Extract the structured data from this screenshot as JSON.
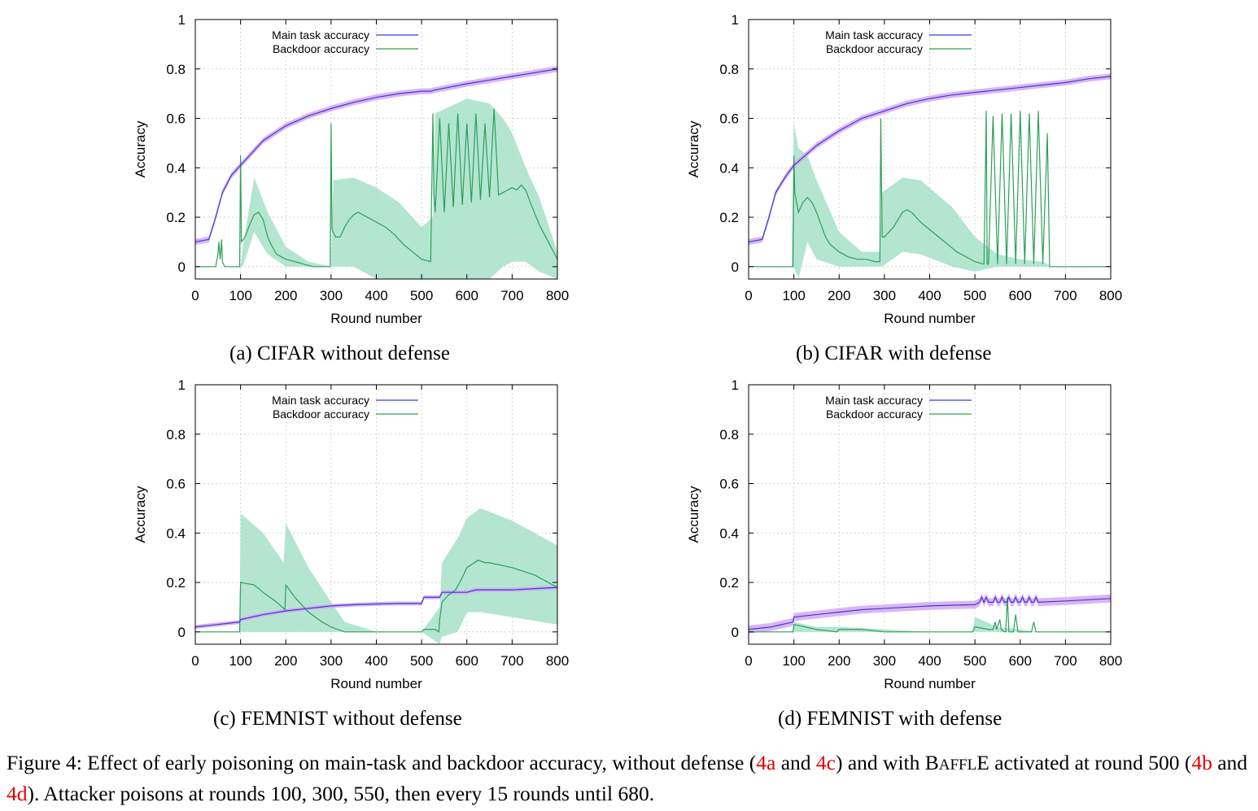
{
  "colors": {
    "main": "#3a3adb",
    "main_band": "#d6a8ee",
    "backdoor": "#2ca05a",
    "backdoor_band": "#a6e0c9",
    "grid": "#c8c8c8",
    "ref": "#e00000"
  },
  "legend": {
    "main": "Main task accuracy",
    "backdoor": "Backdoor accuracy"
  },
  "chart_data": [
    {
      "id": "a",
      "type": "line",
      "caption": "(a) CIFAR without defense",
      "xlabel": "Round number",
      "ylabel": "Accuracy",
      "xlim": [
        0,
        800
      ],
      "ylim": [
        -0.05,
        1
      ],
      "xticks": [
        "0",
        "100",
        "200",
        "300",
        "400",
        "500",
        "600",
        "700",
        "800"
      ],
      "yticks": [
        "0",
        "0.2",
        "0.4",
        "0.6",
        "0.8",
        "1"
      ],
      "grid": true,
      "legend_position": "top-left",
      "series": [
        {
          "name": "Main task accuracy",
          "band": 0.012,
          "x": [
            0,
            30,
            45,
            60,
            80,
            100,
            150,
            200,
            250,
            300,
            350,
            400,
            450,
            500,
            520,
            530,
            600,
            650,
            700,
            750,
            800
          ],
          "y": [
            0.1,
            0.11,
            0.2,
            0.3,
            0.37,
            0.41,
            0.51,
            0.57,
            0.61,
            0.64,
            0.665,
            0.685,
            0.7,
            0.71,
            0.71,
            0.715,
            0.74,
            0.755,
            0.77,
            0.785,
            0.8
          ]
        },
        {
          "name": "Backdoor accuracy",
          "x": [
            0,
            45,
            50,
            52,
            55,
            58,
            60,
            65,
            70,
            75,
            98,
            100,
            102,
            110,
            120,
            130,
            140,
            150,
            160,
            170,
            180,
            200,
            220,
            240,
            260,
            270,
            298,
            300,
            302,
            310,
            320,
            330,
            340,
            350,
            360,
            370,
            380,
            400,
            420,
            440,
            460,
            480,
            500,
            520,
            525,
            527,
            530,
            540,
            550,
            560,
            570,
            580,
            590,
            600,
            610,
            620,
            630,
            640,
            650,
            660,
            670,
            680,
            690,
            700,
            710,
            720,
            730,
            740,
            760,
            780,
            800
          ],
          "y": [
            0.0,
            0.0,
            0.05,
            0.1,
            0.03,
            0.11,
            0.02,
            0.0,
            0.0,
            0.0,
            0.0,
            0.45,
            0.1,
            0.12,
            0.17,
            0.21,
            0.22,
            0.19,
            0.12,
            0.08,
            0.05,
            0.03,
            0.02,
            0.01,
            0.0,
            0.0,
            0.0,
            0.58,
            0.15,
            0.12,
            0.12,
            0.16,
            0.19,
            0.21,
            0.22,
            0.21,
            0.2,
            0.18,
            0.16,
            0.13,
            0.09,
            0.06,
            0.03,
            0.02,
            0.62,
            0.3,
            0.22,
            0.6,
            0.22,
            0.58,
            0.24,
            0.62,
            0.25,
            0.58,
            0.26,
            0.62,
            0.27,
            0.58,
            0.28,
            0.64,
            0.29,
            0.3,
            0.31,
            0.32,
            0.31,
            0.33,
            0.31,
            0.26,
            0.17,
            0.1,
            0.03
          ],
          "band_x": [
            0,
            45,
            100,
            105,
            130,
            160,
            200,
            250,
            300,
            305,
            350,
            400,
            450,
            500,
            525,
            530,
            600,
            650,
            680,
            700,
            730,
            760,
            800
          ],
          "band_lo": [
            0.0,
            0.0,
            0.0,
            0.0,
            0.14,
            0.05,
            0.0,
            0.0,
            0.0,
            0.0,
            0.0,
            -0.05,
            -0.05,
            -0.05,
            -0.05,
            -0.05,
            -0.05,
            -0.05,
            0.0,
            0.02,
            0.02,
            -0.02,
            -0.05
          ],
          "band_hi": [
            0.0,
            0.0,
            0.0,
            0.08,
            0.36,
            0.22,
            0.08,
            0.02,
            0.0,
            0.35,
            0.36,
            0.32,
            0.26,
            0.16,
            0.2,
            0.62,
            0.68,
            0.66,
            0.6,
            0.54,
            0.4,
            0.28,
            0.06
          ]
        }
      ]
    },
    {
      "id": "b",
      "type": "line",
      "caption": "(b) CIFAR with defense",
      "xlabel": "Round number",
      "ylabel": "Accuracy",
      "xlim": [
        0,
        800
      ],
      "ylim": [
        -0.05,
        1
      ],
      "xticks": [
        "0",
        "100",
        "200",
        "300",
        "400",
        "500",
        "600",
        "700",
        "800"
      ],
      "yticks": [
        "0",
        "0.2",
        "0.4",
        "0.6",
        "0.8",
        "1"
      ],
      "grid": true,
      "legend_position": "top-left",
      "series": [
        {
          "name": "Main task accuracy",
          "band": 0.012,
          "x": [
            0,
            30,
            45,
            60,
            80,
            100,
            150,
            200,
            250,
            300,
            350,
            400,
            450,
            500,
            550,
            600,
            650,
            700,
            750,
            800
          ],
          "y": [
            0.1,
            0.11,
            0.2,
            0.3,
            0.36,
            0.41,
            0.49,
            0.55,
            0.6,
            0.63,
            0.66,
            0.68,
            0.695,
            0.705,
            0.715,
            0.725,
            0.735,
            0.745,
            0.76,
            0.77
          ]
        },
        {
          "name": "Backdoor accuracy",
          "x": [
            0,
            95,
            98,
            100,
            102,
            110,
            120,
            130,
            140,
            150,
            160,
            170,
            180,
            200,
            220,
            240,
            260,
            280,
            290,
            292,
            295,
            300,
            310,
            320,
            330,
            340,
            350,
            360,
            370,
            380,
            400,
            420,
            440,
            460,
            480,
            500,
            520,
            525,
            527,
            530,
            540,
            550,
            560,
            570,
            580,
            590,
            600,
            610,
            620,
            630,
            640,
            650,
            660,
            665,
            670,
            680,
            700,
            750,
            800
          ],
          "y": [
            0.0,
            0.0,
            0.0,
            0.45,
            0.3,
            0.22,
            0.26,
            0.28,
            0.26,
            0.22,
            0.17,
            0.12,
            0.09,
            0.06,
            0.04,
            0.03,
            0.03,
            0.02,
            0.02,
            0.6,
            0.12,
            0.12,
            0.14,
            0.16,
            0.19,
            0.22,
            0.23,
            0.22,
            0.2,
            0.18,
            0.15,
            0.12,
            0.09,
            0.06,
            0.04,
            0.02,
            0.01,
            0.63,
            0.01,
            0.01,
            0.61,
            0.01,
            0.62,
            0.01,
            0.62,
            0.01,
            0.63,
            0.01,
            0.62,
            0.01,
            0.63,
            0.01,
            0.54,
            0.0,
            0.0,
            0.0,
            0.0,
            0.0,
            0.0
          ],
          "band_x": [
            0,
            95,
            100,
            110,
            130,
            150,
            200,
            250,
            290,
            295,
            340,
            380,
            450,
            500,
            550,
            600,
            650,
            670,
            800
          ],
          "band_lo": [
            0.0,
            0.0,
            0.0,
            -0.05,
            0.1,
            0.03,
            0.0,
            0.0,
            0.0,
            0.0,
            0.06,
            0.05,
            0.0,
            -0.02,
            0.0,
            0.0,
            0.0,
            0.0,
            0.0
          ],
          "band_hi": [
            0.0,
            0.0,
            0.58,
            0.48,
            0.45,
            0.35,
            0.14,
            0.06,
            0.06,
            0.3,
            0.36,
            0.35,
            0.24,
            0.12,
            0.05,
            0.03,
            0.02,
            0.0,
            0.0
          ]
        }
      ]
    },
    {
      "id": "c",
      "type": "line",
      "caption": "(c) FEMNIST without defense",
      "xlabel": "Round number",
      "ylabel": "Accuracy",
      "xlim": [
        0,
        800
      ],
      "ylim": [
        -0.05,
        1
      ],
      "xticks": [
        "0",
        "100",
        "200",
        "300",
        "400",
        "500",
        "600",
        "700",
        "800"
      ],
      "yticks": [
        "0",
        "0.2",
        "0.4",
        "0.6",
        "0.8",
        "1"
      ],
      "grid": true,
      "legend_position": "top-left",
      "series": [
        {
          "name": "Main task accuracy",
          "band": 0.008,
          "x": [
            0,
            50,
            98,
            100,
            150,
            200,
            250,
            300,
            350,
            400,
            450,
            500,
            505,
            540,
            545,
            600,
            620,
            650,
            700,
            800
          ],
          "y": [
            0.02,
            0.03,
            0.04,
            0.05,
            0.07,
            0.085,
            0.095,
            0.105,
            0.11,
            0.113,
            0.115,
            0.115,
            0.14,
            0.14,
            0.16,
            0.16,
            0.17,
            0.17,
            0.17,
            0.18
          ]
        },
        {
          "name": "Backdoor accuracy",
          "x": [
            0,
            98,
            100,
            130,
            150,
            180,
            198,
            200,
            220,
            250,
            280,
            300,
            330,
            350,
            400,
            500,
            505,
            530,
            538,
            540,
            545,
            560,
            575,
            590,
            600,
            625,
            640,
            650,
            700,
            750,
            800
          ],
          "y": [
            0.0,
            0.0,
            0.2,
            0.19,
            0.16,
            0.12,
            0.09,
            0.19,
            0.14,
            0.08,
            0.04,
            0.02,
            0.0,
            0.0,
            0.0,
            0.0,
            0.01,
            0.01,
            0.0,
            0.05,
            0.12,
            0.15,
            0.17,
            0.22,
            0.26,
            0.29,
            0.28,
            0.28,
            0.26,
            0.23,
            0.18
          ],
          "band_x": [
            0,
            98,
            100,
            150,
            195,
            200,
            250,
            300,
            330,
            400,
            500,
            540,
            545,
            580,
            600,
            630,
            700,
            800
          ],
          "band_lo": [
            0.0,
            0.0,
            0.0,
            0.0,
            0.0,
            0.0,
            0.0,
            0.0,
            0.0,
            0.0,
            0.0,
            -0.05,
            -0.02,
            0.0,
            0.08,
            0.08,
            0.06,
            0.03
          ],
          "band_hi": [
            0.0,
            0.0,
            0.48,
            0.4,
            0.28,
            0.44,
            0.26,
            0.12,
            0.04,
            0.0,
            0.0,
            0.1,
            0.28,
            0.38,
            0.46,
            0.5,
            0.45,
            0.35
          ]
        }
      ]
    },
    {
      "id": "d",
      "type": "line",
      "caption": "(d) FEMNIST with defense",
      "xlabel": "Round number",
      "ylabel": "Accuracy",
      "xlim": [
        0,
        800
      ],
      "ylim": [
        -0.05,
        1
      ],
      "xticks": [
        "0",
        "100",
        "200",
        "300",
        "400",
        "500",
        "600",
        "700",
        "800"
      ],
      "yticks": [
        "0",
        "0.2",
        "0.4",
        "0.6",
        "0.8",
        "1"
      ],
      "grid": true,
      "legend_position": "top-left",
      "series": [
        {
          "name": "Main task accuracy",
          "band": 0.016,
          "x": [
            0,
            50,
            98,
            100,
            150,
            200,
            250,
            300,
            350,
            400,
            450,
            500,
            510,
            515,
            520,
            525,
            530,
            540,
            545,
            550,
            555,
            560,
            565,
            570,
            575,
            580,
            585,
            590,
            595,
            600,
            605,
            610,
            615,
            620,
            625,
            630,
            635,
            640,
            700,
            800
          ],
          "y": [
            0.01,
            0.02,
            0.04,
            0.06,
            0.07,
            0.08,
            0.09,
            0.095,
            0.1,
            0.105,
            0.108,
            0.11,
            0.12,
            0.14,
            0.12,
            0.14,
            0.12,
            0.12,
            0.14,
            0.12,
            0.12,
            0.14,
            0.12,
            0.12,
            0.14,
            0.12,
            0.12,
            0.14,
            0.12,
            0.12,
            0.14,
            0.12,
            0.12,
            0.14,
            0.12,
            0.12,
            0.14,
            0.12,
            0.125,
            0.135
          ]
        },
        {
          "name": "Backdoor accuracy",
          "x": [
            0,
            98,
            100,
            150,
            195,
            200,
            250,
            300,
            400,
            495,
            500,
            530,
            540,
            545,
            548,
            555,
            558,
            565,
            568,
            572,
            575,
            585,
            590,
            595,
            600,
            625,
            630,
            635,
            640,
            700,
            800
          ],
          "y": [
            0.0,
            0.0,
            0.03,
            0.01,
            0.0,
            0.01,
            0.01,
            0.0,
            0.0,
            0.0,
            0.02,
            0.01,
            0.01,
            0.04,
            0.01,
            0.05,
            0.01,
            0.0,
            0.0,
            0.14,
            0.0,
            0.0,
            0.07,
            0.0,
            0.0,
            0.0,
            0.04,
            0.0,
            0.0,
            0.0,
            0.0
          ],
          "band_x": [
            0,
            98,
            100,
            150,
            200,
            300,
            400,
            495,
            500,
            550,
            600,
            640,
            700,
            800
          ],
          "band_lo": [
            0.0,
            0.0,
            0.0,
            0.0,
            0.0,
            0.0,
            0.0,
            0.0,
            0.0,
            0.0,
            0.0,
            0.0,
            0.0,
            0.0
          ],
          "band_hi": [
            0.0,
            0.0,
            0.04,
            0.02,
            0.02,
            0.01,
            0.0,
            0.0,
            0.06,
            0.02,
            0.01,
            0.0,
            0.0,
            0.0
          ]
        }
      ]
    }
  ],
  "figure_caption": {
    "p1": "Figure 4: Effect of early poisoning on main-task and backdoor accuracy, without defense (",
    "ref_a": "4a",
    "and1": " and ",
    "ref_c": "4c",
    "p2": ") and with B",
    "smallcaps1": "AFFL",
    "p3": "E",
    "p4": " activated at round 500 (",
    "ref_b": "4b",
    "and2": " and ",
    "ref_d": "4d",
    "p5": "). Attacker poisons at rounds 100, 300, 550, then every 15 rounds until 680."
  }
}
